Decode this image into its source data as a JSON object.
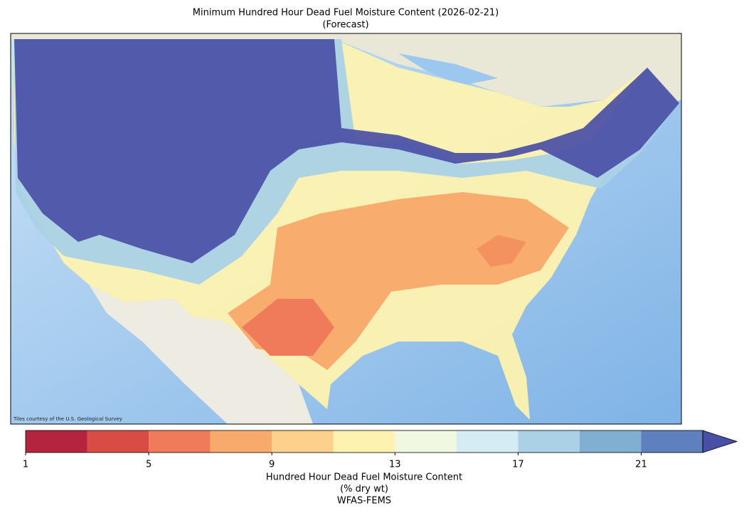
{
  "title": [
    "Minimum Hundred Hour Dead Fuel Moisture Content (2026-02-21)",
    "(Forecast)"
  ],
  "attribution": "Tiles courtesy of the U.S. Geological Survey",
  "colorbar": {
    "levels": [
      1,
      3,
      5,
      7,
      9,
      11,
      13,
      15,
      17,
      19,
      21,
      23
    ],
    "colors": [
      "#b5243f",
      "#d94c45",
      "#ef7b5b",
      "#f8a96c",
      "#fdd08b",
      "#fef2b0",
      "#f1f8e2",
      "#d5ecf4",
      "#aad1e6",
      "#80afd2",
      "#5f80be"
    ],
    "extend_color": "#4a4fa6",
    "ticks": [
      1,
      5,
      9,
      13,
      17,
      21
    ],
    "label": [
      "Hundred Hour Dead Fuel Moisture Content",
      "(% dry wt)",
      "WFAS-FEMS"
    ]
  }
}
